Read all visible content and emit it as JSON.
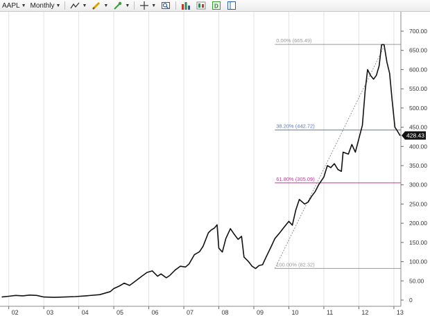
{
  "toolbar": {
    "symbol": "AAPL",
    "interval": "Monthly",
    "icons": [
      "line-style-icon",
      "pencil-icon",
      "marker-icon",
      "crosshair-icon",
      "zoom-icon",
      "bar-chart-icon",
      "candlestick-icon",
      "data-icon",
      "panel-icon"
    ]
  },
  "colors": {
    "price_line": "#111111",
    "fib_gray": "#9a9a9a",
    "fib_blue": "#5577cc",
    "fib_magenta": "#cc3399",
    "last_price_bg": "#111111"
  },
  "chart_data": {
    "type": "line",
    "x_ticks": [
      "02",
      "03",
      "04",
      "05",
      "06",
      "07",
      "08",
      "09",
      "10",
      "11",
      "12",
      "13"
    ],
    "y_ticks": [
      "0",
      "50.00",
      "100.00",
      "150.00",
      "200.00",
      "250.00",
      "300.00",
      "350.00",
      "400.00",
      "450.00",
      "500.00",
      "550.00",
      "600.00",
      "650.00",
      "700.00"
    ],
    "ylim": [
      0,
      700
    ],
    "xlim": [
      2001.75,
      2013.2
    ],
    "last_price": "428.43",
    "fib_levels": [
      {
        "label": "0.00% (665.49)",
        "value": 665.49,
        "color": "#9a9a9a"
      },
      {
        "label": "38.20% (442.72)",
        "value": 442.72,
        "color": "#5577cc"
      },
      {
        "label": "61.80% (305.09)",
        "value": 305.09,
        "color": "#cc3399"
      },
      {
        "label": "100.00% (82.32)",
        "value": 82.32,
        "color": "#9a9a9a"
      }
    ],
    "fib_trend": {
      "start": {
        "x": 2009.6,
        "y": 82.32
      },
      "end": {
        "x": 2012.75,
        "y": 665.49
      }
    },
    "series": [
      {
        "points": [
          [
            2001.8,
            8
          ],
          [
            2002.0,
            10
          ],
          [
            2002.2,
            12
          ],
          [
            2002.4,
            11
          ],
          [
            2002.6,
            13
          ],
          [
            2002.8,
            12
          ],
          [
            2003.0,
            8
          ],
          [
            2003.3,
            7
          ],
          [
            2003.6,
            8
          ],
          [
            2003.9,
            9
          ],
          [
            2004.2,
            11
          ],
          [
            2004.6,
            14
          ],
          [
            2004.9,
            22
          ],
          [
            2005.0,
            30
          ],
          [
            2005.15,
            36
          ],
          [
            2005.3,
            44
          ],
          [
            2005.45,
            38
          ],
          [
            2005.6,
            48
          ],
          [
            2005.8,
            62
          ],
          [
            2005.95,
            72
          ],
          [
            2006.1,
            76
          ],
          [
            2006.25,
            62
          ],
          [
            2006.35,
            68
          ],
          [
            2006.5,
            58
          ],
          [
            2006.6,
            64
          ],
          [
            2006.75,
            78
          ],
          [
            2006.9,
            88
          ],
          [
            2007.05,
            86
          ],
          [
            2007.15,
            94
          ],
          [
            2007.3,
            118
          ],
          [
            2007.45,
            126
          ],
          [
            2007.55,
            140
          ],
          [
            2007.7,
            175
          ],
          [
            2007.78,
            182
          ],
          [
            2007.88,
            188
          ],
          [
            2007.95,
            196
          ],
          [
            2008.0,
            135
          ],
          [
            2008.1,
            125
          ],
          [
            2008.2,
            160
          ],
          [
            2008.33,
            186
          ],
          [
            2008.45,
            170
          ],
          [
            2008.55,
            158
          ],
          [
            2008.65,
            166
          ],
          [
            2008.72,
            112
          ],
          [
            2008.85,
            100
          ],
          [
            2008.95,
            88
          ],
          [
            2009.05,
            82
          ],
          [
            2009.15,
            90
          ],
          [
            2009.25,
            92
          ],
          [
            2009.35,
            112
          ],
          [
            2009.5,
            140
          ],
          [
            2009.6,
            160
          ],
          [
            2009.75,
            176
          ],
          [
            2009.85,
            188
          ],
          [
            2010.0,
            205
          ],
          [
            2010.1,
            195
          ],
          [
            2010.2,
            235
          ],
          [
            2010.3,
            262
          ],
          [
            2010.45,
            250
          ],
          [
            2010.55,
            255
          ],
          [
            2010.65,
            270
          ],
          [
            2010.75,
            282
          ],
          [
            2010.85,
            300
          ],
          [
            2011.0,
            320
          ],
          [
            2011.1,
            350
          ],
          [
            2011.2,
            345
          ],
          [
            2011.3,
            355
          ],
          [
            2011.4,
            340
          ],
          [
            2011.5,
            335
          ],
          [
            2011.55,
            385
          ],
          [
            2011.7,
            380
          ],
          [
            2011.8,
            405
          ],
          [
            2011.9,
            385
          ],
          [
            2012.0,
            420
          ],
          [
            2012.1,
            455
          ],
          [
            2012.18,
            545
          ],
          [
            2012.25,
            600
          ],
          [
            2012.33,
            585
          ],
          [
            2012.42,
            575
          ],
          [
            2012.5,
            585
          ],
          [
            2012.58,
            610
          ],
          [
            2012.65,
            665
          ],
          [
            2012.72,
            665
          ],
          [
            2012.8,
            620
          ],
          [
            2012.88,
            590
          ],
          [
            2012.95,
            520
          ],
          [
            2013.03,
            450
          ],
          [
            2013.1,
            440
          ],
          [
            2013.18,
            428
          ]
        ]
      }
    ]
  }
}
